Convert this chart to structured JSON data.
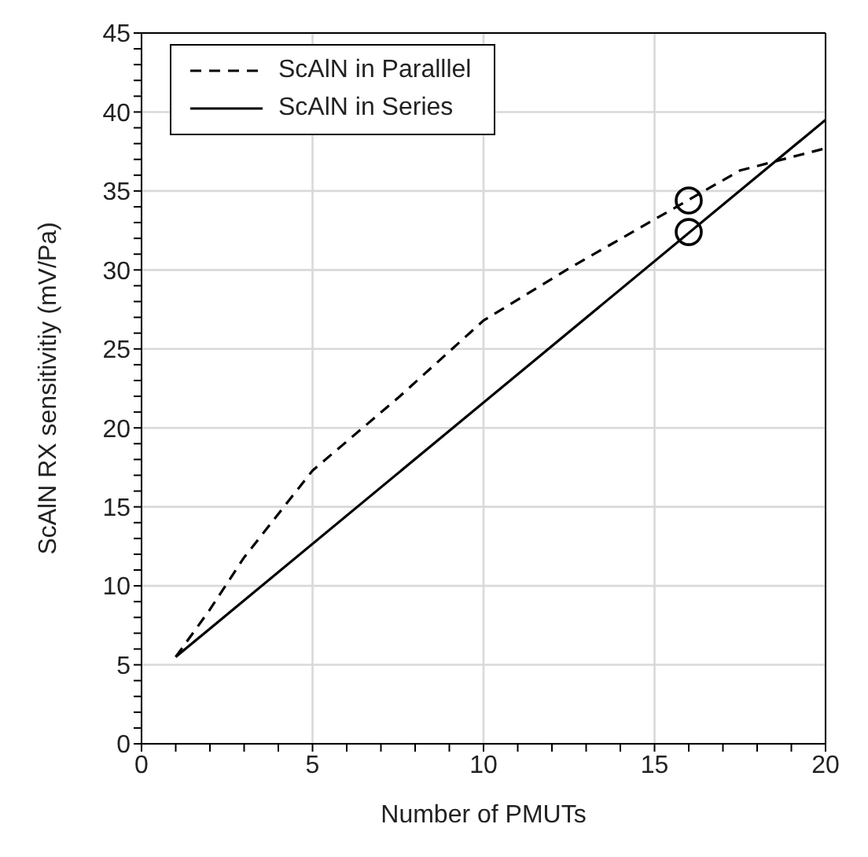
{
  "chart_data": {
    "type": "line",
    "xlabel": "Number of PMUTs",
    "ylabel": "ScAlN RX sensitivitiy (mV/Pa)",
    "xlim": [
      0,
      20
    ],
    "ylim": [
      0,
      45
    ],
    "xticks": [
      0,
      {
        "value": 1,
        "label": null
      },
      {
        "value": 2,
        "label": null
      },
      {
        "value": 3,
        "label": null
      },
      {
        "value": 4,
        "label": null
      },
      5,
      {
        "value": 6,
        "label": null
      },
      {
        "value": 7,
        "label": null
      },
      {
        "value": 8,
        "label": null
      },
      {
        "value": 9,
        "label": null
      },
      10,
      {
        "value": 11,
        "label": null
      },
      {
        "value": 12,
        "label": null
      },
      {
        "value": 13,
        "label": null
      },
      {
        "value": 14,
        "label": null
      },
      15,
      {
        "value": 16,
        "label": null
      },
      {
        "value": 17,
        "label": null
      },
      {
        "value": 18,
        "label": null
      },
      {
        "value": 19,
        "label": null
      },
      20
    ],
    "yticks": [
      0,
      {
        "value": 1,
        "label": null
      },
      {
        "value": 2,
        "label": null
      },
      {
        "value": 3,
        "label": null
      },
      {
        "value": 4,
        "label": null
      },
      5,
      {
        "value": 6,
        "label": null
      },
      {
        "value": 7,
        "label": null
      },
      {
        "value": 8,
        "label": null
      },
      {
        "value": 9,
        "label": null
      },
      10,
      {
        "value": 11,
        "label": null
      },
      {
        "value": 12,
        "label": null
      },
      {
        "value": 13,
        "label": null
      },
      {
        "value": 14,
        "label": null
      },
      15,
      {
        "value": 16,
        "label": null
      },
      {
        "value": 17,
        "label": null
      },
      {
        "value": 18,
        "label": null
      },
      {
        "value": 19,
        "label": null
      },
      20,
      {
        "value": 21,
        "label": null
      },
      {
        "value": 22,
        "label": null
      },
      {
        "value": 23,
        "label": null
      },
      {
        "value": 24,
        "label": null
      },
      25,
      {
        "value": 26,
        "label": null
      },
      {
        "value": 27,
        "label": null
      },
      {
        "value": 28,
        "label": null
      },
      {
        "value": 29,
        "label": null
      },
      30,
      {
        "value": 31,
        "label": null
      },
      {
        "value": 32,
        "label": null
      },
      {
        "value": 33,
        "label": null
      },
      {
        "value": 34,
        "label": null
      },
      35,
      {
        "value": 36,
        "label": null
      },
      {
        "value": 37,
        "label": null
      },
      {
        "value": 38,
        "label": null
      },
      {
        "value": 39,
        "label": null
      },
      40,
      {
        "value": 41,
        "label": null
      },
      {
        "value": 42,
        "label": null
      },
      {
        "value": 43,
        "label": null
      },
      {
        "value": 44,
        "label": null
      },
      45
    ],
    "grid": true,
    "legend": "top left",
    "series": [
      {
        "name": "ScAlN in Paralllel",
        "color": "#000000",
        "line_style": "dashed",
        "marker": "none",
        "x": [
          1,
          2,
          3,
          5,
          7.5,
          10,
          12.5,
          15,
          17.5,
          20
        ],
        "values": [
          5.5,
          8.5,
          11.8,
          17.3,
          21.9,
          26.8,
          30.1,
          33.2,
          36.3,
          37.7
        ]
      },
      {
        "name": "ScAlN in Series",
        "color": "#000000",
        "line_style": "solid",
        "marker": "none",
        "x": [
          1,
          20
        ],
        "values": [
          5.5,
          39.5
        ]
      },
      {
        "type": "scatter",
        "color": "#000000",
        "marker": "circle",
        "x": [
          16,
          16
        ],
        "values": [
          34.4,
          32.4
        ]
      }
    ]
  }
}
